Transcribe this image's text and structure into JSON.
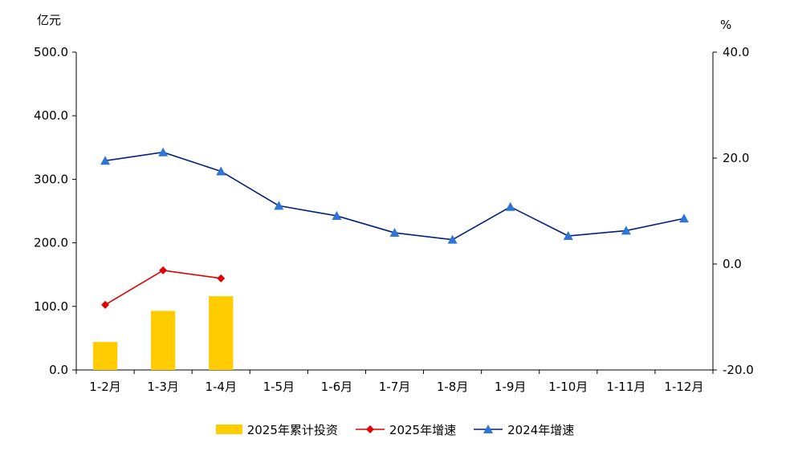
{
  "chart_data": {
    "type": "bar+line",
    "categories": [
      "1-2月",
      "1-3月",
      "1-4月",
      "1-5月",
      "1-6月",
      "1-7月",
      "1-8月",
      "1-9月",
      "1-10月",
      "1-11月",
      "1-12月"
    ],
    "left_axis": {
      "label": "亿元",
      "range": [
        0,
        500
      ],
      "ticks": [
        "0.0",
        "100.0",
        "200.0",
        "300.0",
        "400.0",
        "500.0"
      ]
    },
    "right_axis": {
      "label": "%",
      "range": [
        -20,
        40
      ],
      "ticks": [
        "-20.0",
        "0.0",
        "20.0",
        "40.0"
      ]
    },
    "series": [
      {
        "name": "2025年累计投资",
        "type": "bar",
        "axis": "left",
        "color": "#FFCC00",
        "values": [
          44,
          93,
          116,
          null,
          null,
          null,
          null,
          null,
          null,
          null,
          null
        ]
      },
      {
        "name": "2025年增速",
        "type": "line",
        "axis": "right",
        "color": "#E00000",
        "marker": "diamond",
        "values": [
          -7.7,
          -1.2,
          -2.7,
          null,
          null,
          null,
          null,
          null,
          null,
          null,
          null
        ]
      },
      {
        "name": "2024年增速",
        "type": "line",
        "axis": "right",
        "color": "#002080",
        "marker": "triangle",
        "marker_color": "#2E75D6",
        "values": [
          19.5,
          21.1,
          17.5,
          11.0,
          9.1,
          5.9,
          4.6,
          10.8,
          5.3,
          6.3,
          8.6
        ]
      }
    ],
    "legend": "bottom-center",
    "grid": false
  }
}
